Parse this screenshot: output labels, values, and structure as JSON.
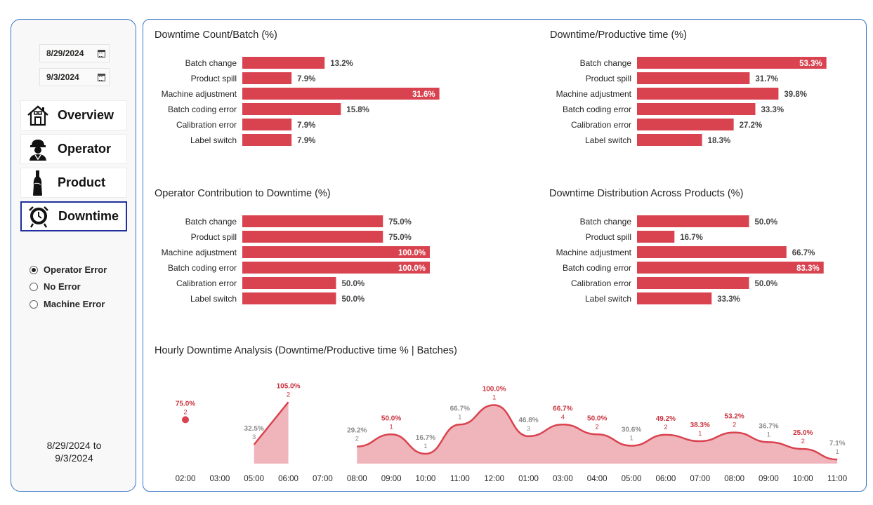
{
  "filters": {
    "start_date": "8/29/2024",
    "end_date": "9/3/2024",
    "range_line1": "8/29/2024 to",
    "range_line2": "9/3/2024"
  },
  "nav": [
    {
      "label": "Overview",
      "icon": "house-icon"
    },
    {
      "label": "Operator",
      "icon": "worker-icon"
    },
    {
      "label": "Product",
      "icon": "bottle-icon"
    },
    {
      "label": "Downtime",
      "icon": "clock-alert-icon",
      "active": true
    }
  ],
  "radio": [
    {
      "label": "Operator Error",
      "checked": true
    },
    {
      "label": "No Error",
      "checked": false
    },
    {
      "label": "Machine Error",
      "checked": false
    }
  ],
  "colors": {
    "bar": "#d9434f",
    "area": "#efb5bb",
    "line": "#d9434f",
    "label_red": "#c9333e",
    "label_gray": "#8c8c8c",
    "accent_border": "#3b74c8",
    "active_nav_border": "#1f2f9e"
  },
  "chart_data": [
    {
      "type": "bar",
      "orientation": "horizontal",
      "title": "Downtime Count/Batch (%)",
      "categories": [
        "Batch change",
        "Product spill",
        "Machine adjustment",
        "Batch coding error",
        "Calibration error",
        "Label switch"
      ],
      "values": [
        13.2,
        7.9,
        31.6,
        15.8,
        7.9,
        7.9
      ],
      "labels": [
        "13.2%",
        "7.9%",
        "31.6%",
        "15.8%",
        "7.9%",
        "7.9%"
      ]
    },
    {
      "type": "bar",
      "orientation": "horizontal",
      "title": "Downtime/Productive time (%)",
      "categories": [
        "Batch change",
        "Product spill",
        "Machine adjustment",
        "Batch coding error",
        "Calibration error",
        "Label switch"
      ],
      "values": [
        53.3,
        31.7,
        39.8,
        33.3,
        27.2,
        18.3
      ],
      "labels": [
        "53.3%",
        "31.7%",
        "39.8%",
        "33.3%",
        "27.2%",
        "18.3%"
      ]
    },
    {
      "type": "bar",
      "orientation": "horizontal",
      "title": "Operator Contribution to Downtime (%)",
      "categories": [
        "Batch change",
        "Product spill",
        "Machine adjustment",
        "Batch coding error",
        "Calibration error",
        "Label switch"
      ],
      "values": [
        75.0,
        75.0,
        100.0,
        100.0,
        50.0,
        50.0
      ],
      "labels": [
        "75.0%",
        "75.0%",
        "100.0%",
        "100.0%",
        "50.0%",
        "50.0%"
      ]
    },
    {
      "type": "bar",
      "orientation": "horizontal",
      "title": "Downtime Distribution Across Products (%)",
      "categories": [
        "Batch change",
        "Product spill",
        "Machine adjustment",
        "Batch coding error",
        "Calibration error",
        "Label switch"
      ],
      "values": [
        50.0,
        16.7,
        66.7,
        83.3,
        50.0,
        33.3
      ],
      "labels": [
        "50.0%",
        "16.7%",
        "66.7%",
        "83.3%",
        "50.0%",
        "33.3%"
      ]
    },
    {
      "type": "area",
      "title": "Hourly Downtime Analysis (Downtime/Productive time % | Batches)",
      "categories": [
        "02:00 AM",
        "03:00 AM",
        "05:00 AM",
        "06:00 AM",
        "07:00 AM",
        "08:00 AM",
        "09:00 AM",
        "10:00 AM",
        "11:00 AM",
        "12:00 PM",
        "01:00 PM",
        "03:00 PM",
        "04:00 PM",
        "05:00 PM",
        "06:00 PM",
        "07:00 PM",
        "08:00 PM",
        "09:00 PM",
        "10:00 PM",
        "11:00 PM"
      ],
      "values": [
        75.0,
        null,
        32.5,
        105.0,
        null,
        29.2,
        50.0,
        16.7,
        66.7,
        100.0,
        46.8,
        66.7,
        50.0,
        30.6,
        49.2,
        38.3,
        53.2,
        36.7,
        25.0,
        7.1
      ],
      "value_labels": [
        "75.0%",
        "",
        "32.5%",
        "105.0%",
        "",
        "29.2%",
        "50.0%",
        "16.7%",
        "66.7%",
        "100.0%",
        "46.8%",
        "66.7%",
        "50.0%",
        "30.6%",
        "49.2%",
        "38.3%",
        "53.2%",
        "36.7%",
        "25.0%",
        "7.1%"
      ],
      "batches": [
        "2",
        "",
        "3",
        "2",
        "",
        "2",
        "1",
        "1",
        "1",
        "1",
        "3",
        "4",
        "2",
        "1",
        "2",
        "1",
        "2",
        "1",
        "2",
        "1"
      ],
      "highlighted": [
        true,
        false,
        false,
        true,
        false,
        false,
        true,
        false,
        false,
        true,
        false,
        true,
        true,
        false,
        true,
        true,
        true,
        false,
        true,
        false
      ]
    }
  ]
}
